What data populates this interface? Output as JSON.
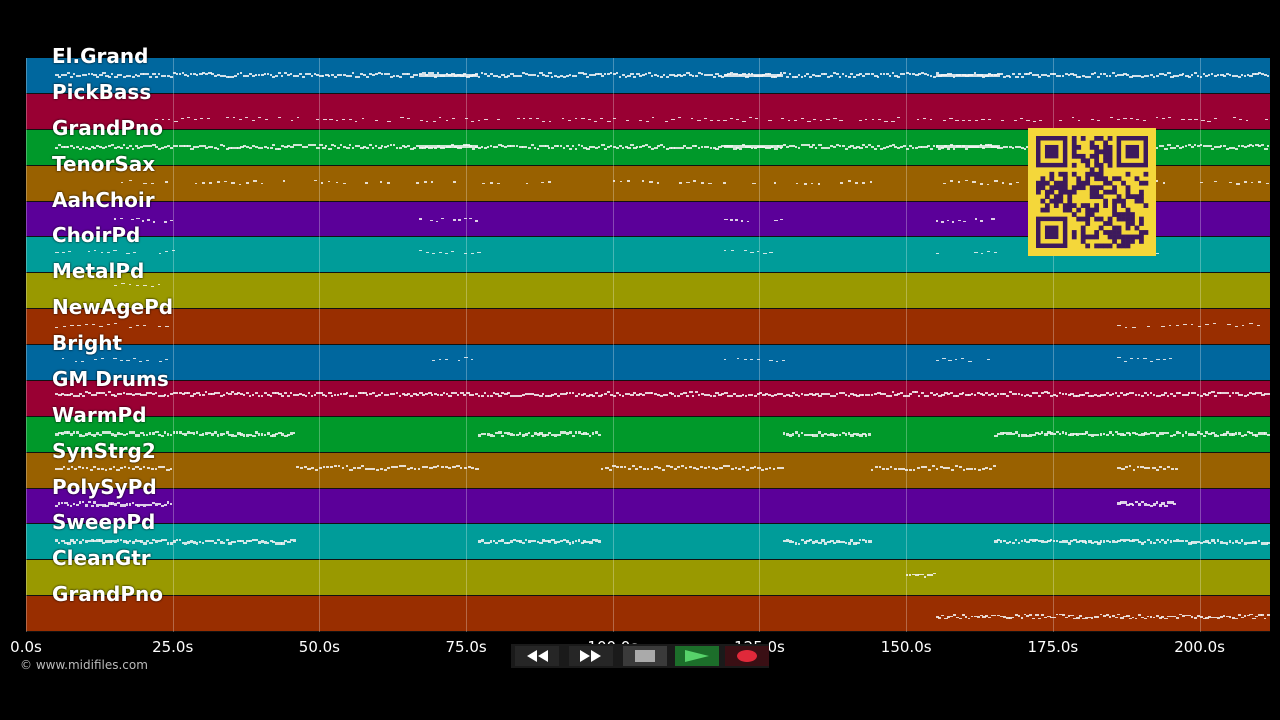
{
  "tracks": [
    {
      "name": "El.Grand",
      "color": "#00679e"
    },
    {
      "name": "PickBass",
      "color": "#990033"
    },
    {
      "name": "GrandPno",
      "color": "#00992a"
    },
    {
      "name": "TenorSax",
      "color": "#996100"
    },
    {
      "name": "AahChoir",
      "color": "#5b0099"
    },
    {
      "name": "ChoirPd",
      "color": "#009c99"
    },
    {
      "name": "MetalPd",
      "color": "#999900"
    },
    {
      "name": "NewAgePd",
      "color": "#992e00"
    },
    {
      "name": "Bright",
      "color": "#00679e"
    },
    {
      "name": "GM Drums",
      "color": "#990033"
    },
    {
      "name": "WarmPd",
      "color": "#00992a"
    },
    {
      "name": "SynStrg2",
      "color": "#996100"
    },
    {
      "name": "PolySyPd",
      "color": "#5b0099"
    },
    {
      "name": "SweepPd",
      "color": "#009c99"
    },
    {
      "name": "CleanGtr",
      "color": "#999900"
    },
    {
      "name": "GrandPno",
      "color": "#992e00"
    }
  ],
  "timeline": {
    "max_seconds": 212,
    "ticks": [
      "0.0s",
      "25.0s",
      "50.0s",
      "75.0s",
      "100.0s",
      "125.0s",
      "150.0s",
      "175.0s",
      "200.0s"
    ],
    "tick_values": [
      0,
      25,
      50,
      75,
      100,
      125,
      150,
      175,
      200
    ]
  },
  "copyright": "© www.midifiles.com",
  "transport": {
    "rewind_icon": "rewind-icon",
    "forward_icon": "fast-forward-icon",
    "stop_icon": "stop-icon",
    "play_icon": "play-icon",
    "record_icon": "record-icon"
  },
  "qr_code": "qr-code"
}
